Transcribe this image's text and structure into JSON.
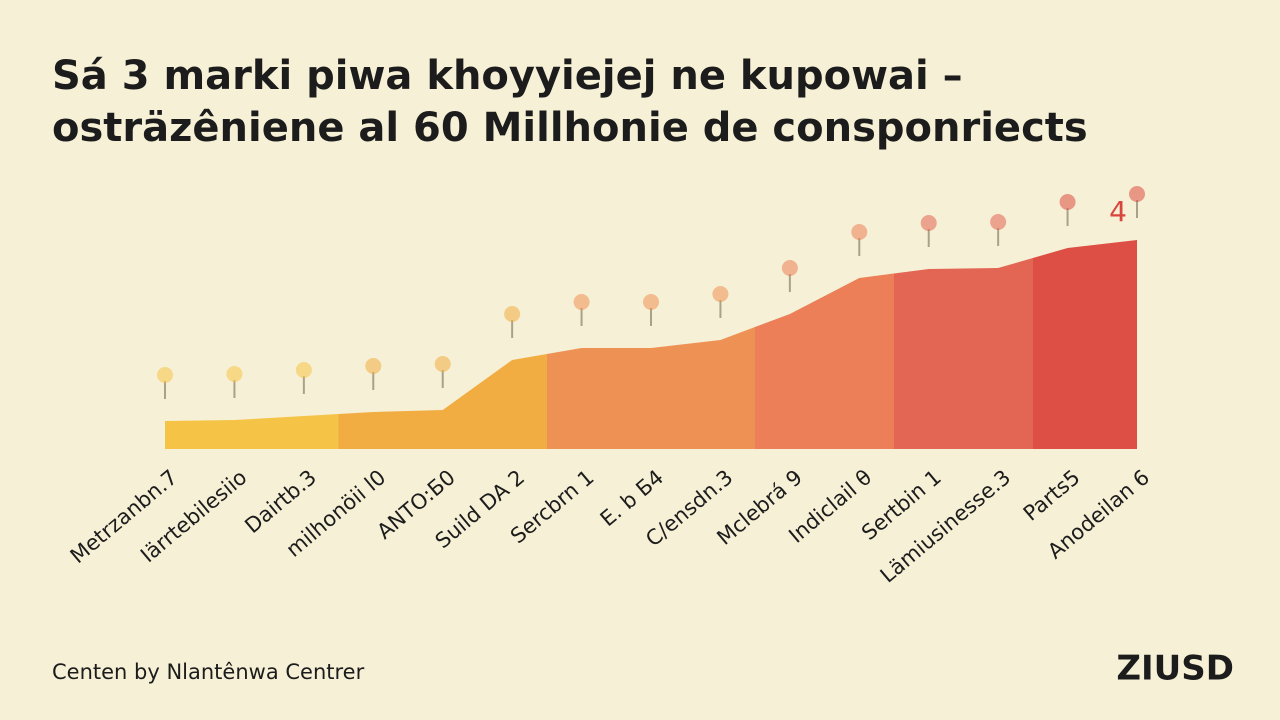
{
  "chart_data": {
    "type": "area",
    "title": [
      "Sá 3 marki piwa khoyyiejej ne kupowai –",
      "osträzêniene al 60 Millhonie de consponriects"
    ],
    "categories": [
      "Metrzanbn.7",
      "Iärrtebilesiio",
      "Dairtb.3",
      "milhonöii l0",
      "ANTO:Б0",
      "Suild DA 2",
      "Sercbrn 1",
      "E. b Б4",
      "C/ensdn.3",
      "Mclebrá 9",
      "Indiclail θ",
      "Sertbin 1",
      "Lämiusinesse.3",
      "Parts5",
      "Anodeilan 6"
    ],
    "values": [
      28,
      29,
      33,
      37,
      39,
      89,
      101,
      101,
      109,
      135,
      171,
      180,
      181,
      201,
      209
    ],
    "colors": [
      "#f5c447",
      "#f5c447",
      "#f5c447",
      "#f2ad42",
      "#f2ad42",
      "#f2ad42",
      "#ee9155",
      "#ee9155",
      "#ee9155",
      "#ec7f58",
      "#ec7f58",
      "#e36553",
      "#e36553",
      "#dd4f44",
      "#dd4f44"
    ],
    "annotation": "4",
    "source": "Centen by Nlantênwa Centrer",
    "logo": "ZIUSD"
  }
}
